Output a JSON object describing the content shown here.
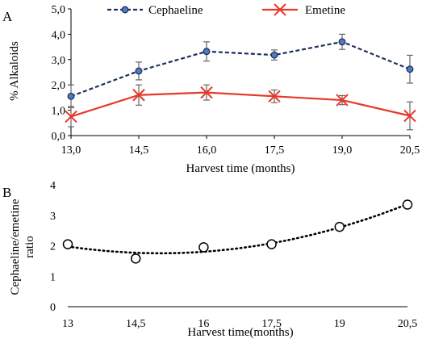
{
  "chart_data": [
    {
      "panel_label": "A",
      "type": "line",
      "x": [
        13.0,
        14.5,
        16.0,
        17.5,
        19.0,
        20.5
      ],
      "x_tick_labels": [
        "13,0",
        "14,5",
        "16,0",
        "17,5",
        "19,0",
        "20,5"
      ],
      "y_tick_labels": [
        "0,0",
        "1,0",
        "2,0",
        "3,0",
        "4,0",
        "5,0"
      ],
      "xlabel": "Harvest time (months)",
      "ylabel": "% Alkaloids",
      "xlim": [
        13.0,
        20.5
      ],
      "ylim": [
        0,
        5
      ],
      "grid": false,
      "legend_position": "top-center",
      "series": [
        {
          "name": "Cephaeline",
          "values": [
            1.55,
            2.55,
            3.32,
            3.18,
            3.7,
            2.62
          ],
          "errors": [
            0.45,
            0.35,
            0.38,
            0.2,
            0.3,
            0.55
          ],
          "color": "#1f2f5e",
          "marker_fill": "#4f7cc0",
          "line_style": "dashed",
          "marker": "circle"
        },
        {
          "name": "Emetine",
          "values": [
            0.75,
            1.6,
            1.7,
            1.55,
            1.4,
            0.78
          ],
          "errors": [
            0.4,
            0.4,
            0.3,
            0.25,
            0.18,
            0.55
          ],
          "color": "#e8382a",
          "line_style": "solid",
          "marker": "x"
        }
      ]
    },
    {
      "panel_label": "B",
      "type": "scatter",
      "x": [
        13,
        14.5,
        16,
        17.5,
        19,
        20.5
      ],
      "x_tick_labels": [
        "13",
        "14,5",
        "16",
        "17,5",
        "19",
        "20,5"
      ],
      "y_tick_labels": [
        "0",
        "1",
        "2",
        "3",
        "4"
      ],
      "xlabel": "Harvest time(months)",
      "ylabel_lines": [
        "Cephaeline/emetine",
        "ratio"
      ],
      "xlim": [
        13,
        20.5
      ],
      "ylim": [
        0,
        4
      ],
      "grid": false,
      "series": [
        {
          "values": [
            2.05,
            1.58,
            1.95,
            2.05,
            2.62,
            3.35
          ],
          "marker": "open-circle",
          "color": "#000000",
          "trendline": "polynomial",
          "trendline_style": "dotted"
        }
      ]
    }
  ]
}
